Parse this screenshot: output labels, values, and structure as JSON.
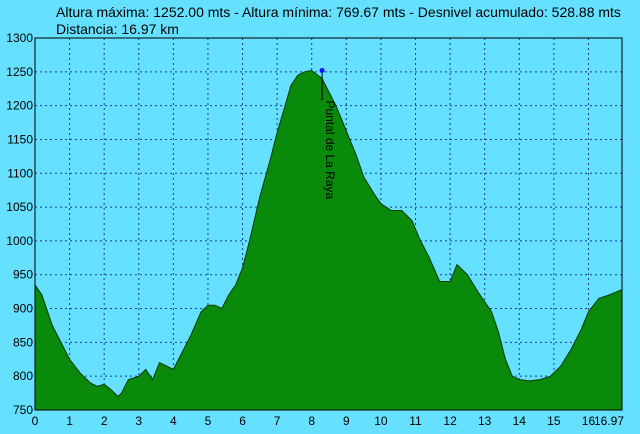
{
  "header": {
    "summary": "Altura máxima: 1252.00 mts - Altura mínima: 769.67 mts - Desnivel acumulado: 528.88 mts",
    "distance": "Distancia: 16.97 km"
  },
  "colors": {
    "background": "#65e0ff",
    "fill": "#0a8a0a",
    "outline": "#063806",
    "grid": "#1a3aa0",
    "marker": "#1010ff"
  },
  "chart_data": {
    "type": "area",
    "xlim": [
      0,
      16.97
    ],
    "ylim": [
      750,
      1300
    ],
    "x_ticks": [
      "0",
      "1",
      "2",
      "3",
      "4",
      "5",
      "6",
      "7",
      "8",
      "9",
      "10",
      "11",
      "12",
      "13",
      "14",
      "15",
      "16",
      "16.97"
    ],
    "y_ticks": [
      "750",
      "800",
      "850",
      "900",
      "950",
      "1000",
      "1050",
      "1100",
      "1150",
      "1200",
      "1250",
      "1300"
    ],
    "grid": true,
    "annotation": {
      "label": "Puntal de La Raya",
      "x": 8.3,
      "y": 1252
    },
    "x": [
      0,
      0.2,
      0.5,
      0.8,
      1.0,
      1.3,
      1.6,
      1.8,
      2.0,
      2.2,
      2.4,
      2.5,
      2.7,
      3.0,
      3.2,
      3.4,
      3.6,
      3.8,
      4.0,
      4.2,
      4.5,
      4.8,
      5.0,
      5.2,
      5.4,
      5.6,
      5.8,
      6.0,
      6.2,
      6.5,
      6.8,
      7.0,
      7.2,
      7.4,
      7.6,
      7.8,
      8.0,
      8.3,
      8.5,
      8.7,
      8.9,
      9.1,
      9.3,
      9.5,
      9.8,
      10.0,
      10.3,
      10.6,
      10.9,
      11.1,
      11.4,
      11.7,
      12.0,
      12.2,
      12.5,
      12.8,
      13.0,
      13.2,
      13.4,
      13.6,
      13.8,
      14.0,
      14.3,
      14.6,
      14.9,
      15.2,
      15.5,
      15.8,
      16.0,
      16.3,
      16.6,
      16.97
    ],
    "y": [
      935,
      920,
      875,
      845,
      825,
      805,
      790,
      785,
      788,
      780,
      770,
      775,
      795,
      800,
      810,
      795,
      820,
      815,
      810,
      830,
      860,
      895,
      905,
      905,
      900,
      920,
      935,
      960,
      1000,
      1065,
      1120,
      1160,
      1195,
      1230,
      1245,
      1250,
      1252,
      1240,
      1220,
      1200,
      1175,
      1150,
      1125,
      1095,
      1070,
      1055,
      1045,
      1045,
      1030,
      1005,
      975,
      940,
      940,
      965,
      950,
      925,
      910,
      895,
      865,
      825,
      800,
      795,
      793,
      795,
      800,
      815,
      840,
      870,
      895,
      915,
      920,
      928
    ]
  }
}
